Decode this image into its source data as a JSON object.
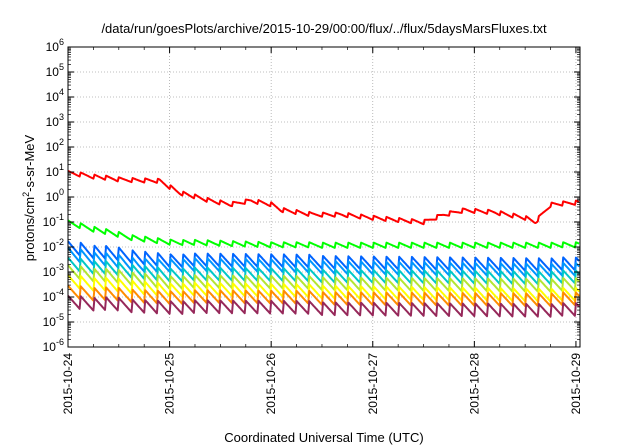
{
  "chart_data": {
    "type": "line",
    "title": "/data/run/goesPlots/archive/2015-10-29/00:00/flux/../flux/5daysMarsFluxes.txt",
    "xlabel": "Coordinated Universal Time (UTC)",
    "ylabel": {
      "base": "protons/cm",
      "sup": "2",
      "rest": "-s-sr-MeV"
    },
    "x_ticks": [
      "2015-10-24",
      "2015-10-25",
      "2015-10-26",
      "2015-10-27",
      "2015-10-28",
      "2015-10-29"
    ],
    "y_scale": "log",
    "ylim_exp": [
      -6,
      6
    ],
    "y_tick_exps": [
      -6,
      -5,
      -4,
      -3,
      -2,
      -1,
      0,
      1,
      2,
      3,
      4,
      5,
      6
    ],
    "grid": true,
    "legend": "none",
    "x_range_days": [
      0,
      5.04
    ],
    "series": [
      {
        "color": "#ff0000",
        "sawtooth": true,
        "points": [
          [
            0,
            9
          ],
          [
            0.5,
            5
          ],
          [
            0.9,
            4.5
          ],
          [
            1.1,
            1.5
          ],
          [
            1.4,
            0.7
          ],
          [
            1.6,
            0.5
          ],
          [
            1.8,
            0.7
          ],
          [
            2.0,
            0.5
          ],
          [
            2.1,
            0.3
          ],
          [
            2.4,
            0.2
          ],
          [
            2.7,
            0.2
          ],
          [
            3.0,
            0.15
          ],
          [
            3.5,
            0.1
          ],
          [
            3.7,
            0.2
          ],
          [
            3.9,
            0.3
          ],
          [
            4.2,
            0.25
          ],
          [
            4.5,
            0.15
          ],
          [
            4.6,
            0.1
          ],
          [
            4.75,
            0.5
          ],
          [
            5.04,
            0.6
          ]
        ]
      },
      {
        "color": "#00ff00",
        "points": [
          [
            0,
            0.09
          ],
          [
            0.6,
            0.025
          ],
          [
            1.0,
            0.016
          ],
          [
            2.0,
            0.012
          ],
          [
            3.0,
            0.012
          ],
          [
            4.0,
            0.012
          ],
          [
            5.04,
            0.012
          ]
        ]
      },
      {
        "color": "#0064ff",
        "points": [
          [
            0,
            0.009
          ],
          [
            0.7,
            0.004
          ],
          [
            1.0,
            0.003
          ],
          [
            5.04,
            0.002
          ]
        ]
      },
      {
        "color": "#0096ff",
        "points": [
          [
            0,
            0.005
          ],
          [
            0.7,
            0.002
          ],
          [
            5.04,
            0.0012
          ]
        ]
      },
      {
        "color": "#00c8c8",
        "points": [
          [
            0,
            0.002
          ],
          [
            1.0,
            0.0008
          ],
          [
            5.04,
            0.0006
          ]
        ]
      },
      {
        "color": "#b4e632",
        "points": [
          [
            0,
            0.001
          ],
          [
            1.0,
            0.0004
          ],
          [
            5.04,
            0.0003
          ]
        ]
      },
      {
        "color": "#ffff00",
        "points": [
          [
            0,
            0.0004
          ],
          [
            1.0,
            0.0002
          ],
          [
            5.04,
            0.00012
          ]
        ]
      },
      {
        "color": "#ff8c00",
        "points": [
          [
            0,
            0.00015
          ],
          [
            1.0,
            0.0001
          ],
          [
            5.04,
            8e-05
          ]
        ]
      },
      {
        "color": "#96285a",
        "points": [
          [
            0,
            6e-05
          ],
          [
            1.0,
            4e-05
          ],
          [
            5.04,
            3e-05
          ]
        ]
      }
    ]
  }
}
